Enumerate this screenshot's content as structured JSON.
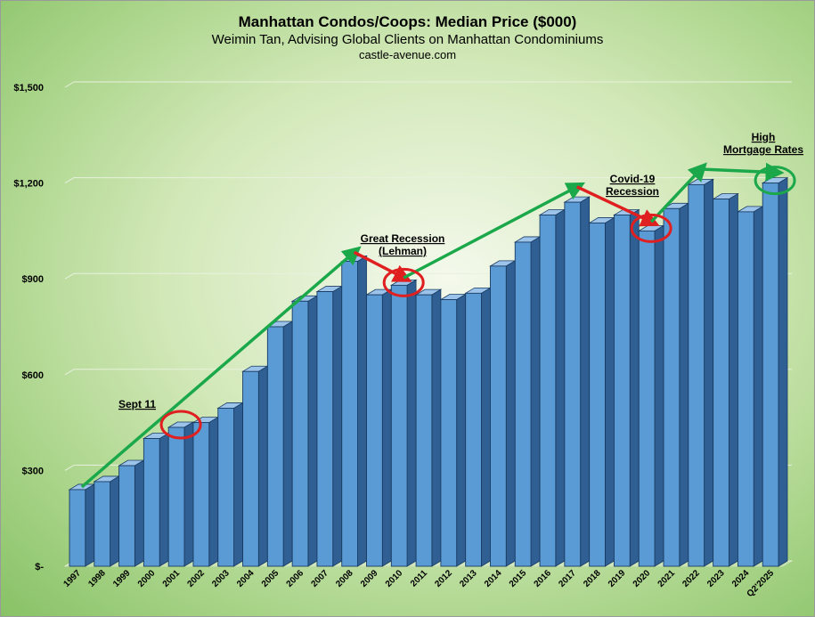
{
  "chart_data": {
    "type": "bar",
    "title": "Manhattan Condos/Coops: Median Price ($000)",
    "subtitle": "Weimin Tan, Advising Global Clients on Manhattan Condominiums",
    "source": "castle-avenue.com",
    "xlabel": "",
    "ylabel": "",
    "ylim": [
      0,
      1500
    ],
    "yticks": [
      0,
      300,
      600,
      900,
      1200,
      1500
    ],
    "ytick_labels": [
      "$-",
      "$300",
      "$600",
      "$900",
      "$1,200",
      "$1,500"
    ],
    "grid": true,
    "legend": "none",
    "categories": [
      "1997",
      "1998",
      "1999",
      "2000",
      "2001",
      "2002",
      "2003",
      "2004",
      "2005",
      "2006",
      "2007",
      "2008",
      "2009",
      "2010",
      "2011",
      "2012",
      "2013",
      "2014",
      "2015",
      "2016",
      "2017",
      "2018",
      "2019",
      "2020",
      "2021",
      "2022",
      "2023",
      "2024",
      "Q2'2025"
    ],
    "values": [
      240,
      265,
      315,
      400,
      435,
      450,
      495,
      610,
      750,
      830,
      860,
      955,
      850,
      880,
      850,
      835,
      855,
      940,
      1015,
      1100,
      1140,
      1075,
      1100,
      1050,
      1120,
      1195,
      1150,
      1110,
      1200
    ],
    "bar_color": "#5b9bd5",
    "annotations": [
      {
        "text": "Sept 11",
        "category": "2001"
      },
      {
        "text": "Great Recession",
        "text2": "(Lehman)",
        "category": "2010"
      },
      {
        "text": "Covid-19",
        "text2": "Recession",
        "category": "2020"
      },
      {
        "text": "High",
        "text2": "Mortgage Rates",
        "category": "Q2'2025"
      }
    ],
    "trend_color": "#1aa84a",
    "decline_color": "#e02020"
  }
}
